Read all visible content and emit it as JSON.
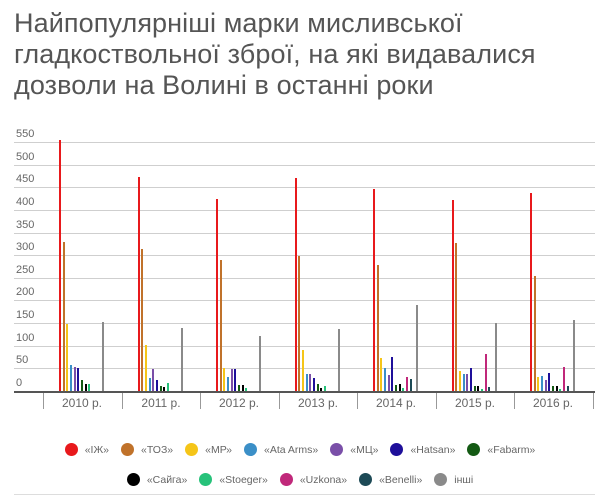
{
  "title": "Найпопулярніші марки мисливської гладкоствольної зброї, на які видавалися дозволи на Волині в останні роки",
  "chart_data": {
    "type": "bar",
    "title": "Найпопулярніші марки мисливської гладкоствольної зброї, на які видавалися дозволи на Волині в останні роки",
    "xlabel": "",
    "ylabel": "",
    "ylim": [
      0,
      550
    ],
    "yticks": [
      0,
      50,
      100,
      150,
      200,
      250,
      300,
      350,
      400,
      450,
      500,
      550
    ],
    "grid": true,
    "legend_position": "bottom",
    "categories": [
      "2010 р.",
      "2011 р.",
      "2012 р.",
      "2013 р.",
      "2014 р.",
      "2015 р.",
      "2016 р."
    ],
    "series": [
      {
        "name": "«ІЖ»",
        "color": "#e8191c",
        "values": [
          555,
          473,
          424,
          471,
          447,
          422,
          438
        ]
      },
      {
        "name": "«ТОЗ»",
        "color": "#c0722a",
        "values": [
          330,
          313,
          289,
          298,
          278,
          327,
          253
        ]
      },
      {
        "name": "«МР»",
        "color": "#f5c518",
        "values": [
          148,
          102,
          51,
          91,
          73,
          44,
          31
        ]
      },
      {
        "name": "«Ata Arms»",
        "color": "#3b8fc7",
        "values": [
          57,
          29,
          31,
          38,
          51,
          38,
          33
        ]
      },
      {
        "name": "«МЦ»",
        "color": "#7a4fa8",
        "values": [
          53,
          49,
          49,
          38,
          35,
          38,
          24
        ]
      },
      {
        "name": "«Hatsan»",
        "color": "#1e0f9a",
        "values": [
          51,
          24,
          49,
          29,
          75,
          51,
          40
        ]
      },
      {
        "name": "«Fabarm»",
        "color": "#145a14",
        "values": [
          24,
          11,
          13,
          15,
          13,
          11,
          11
        ]
      },
      {
        "name": "«Сайга»",
        "color": "#000000",
        "values": [
          15,
          9,
          13,
          7,
          15,
          11,
          11
        ]
      },
      {
        "name": "«Stoeger»",
        "color": "#27c27a",
        "values": [
          15,
          18,
          7,
          11,
          7,
          4,
          4
        ]
      },
      {
        "name": "«Uzkona»",
        "color": "#c0287a",
        "values": [
          0,
          0,
          0,
          0,
          31,
          82,
          53
        ]
      },
      {
        "name": "«Benelli»",
        "color": "#1d4a56",
        "values": [
          0,
          0,
          0,
          0,
          27,
          9,
          11
        ]
      },
      {
        "name": "інші",
        "color": "#8a8a8a",
        "values": [
          153,
          140,
          122,
          137,
          190,
          150,
          157
        ]
      }
    ]
  }
}
